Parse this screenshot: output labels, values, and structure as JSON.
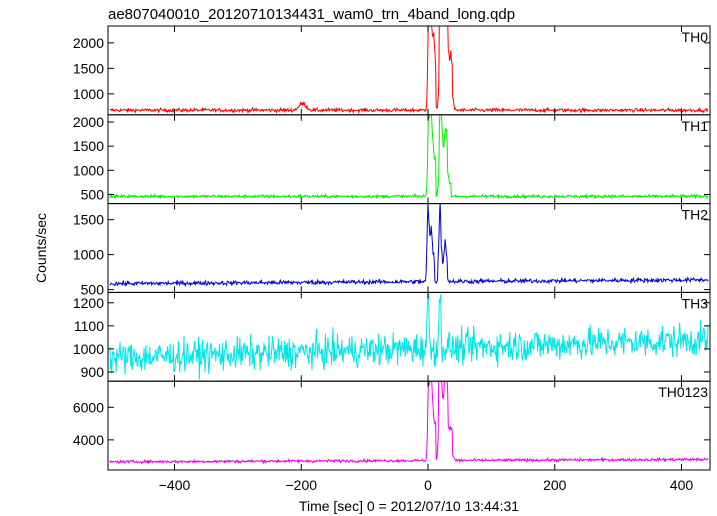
{
  "chart_data": {
    "type": "line",
    "title": "ae807040010_20120710134431_wam0_trn_4band_long.qdp",
    "xlabel": "Time [sec] 0 = 2012/07/10 13:44:31",
    "ylabel": "Counts/sec",
    "xlim": [
      -505,
      445
    ],
    "x_ticks": [
      -400,
      -200,
      0,
      200,
      400
    ],
    "x_tick_labels": [
      "−400",
      "−200",
      "0",
      "200",
      "400"
    ],
    "grid": false,
    "panels": [
      {
        "name": "TH0",
        "color": "#ff0000",
        "ylim": [
          590,
          2330
        ],
        "yticks": [
          1000,
          1500,
          2000
        ],
        "ytick_labels": [
          "1000",
          "1500",
          "2000"
        ],
        "baseline": 680,
        "noise": 25,
        "features": [
          {
            "t": -198,
            "value": 810,
            "width": 8
          },
          {
            "t": 1,
            "value": 2300,
            "width": 2
          },
          {
            "t": 4,
            "value": 1750,
            "width": 3
          },
          {
            "t": 9,
            "value": 1300,
            "width": 2
          },
          {
            "t": 20,
            "value": 1950,
            "width": 3
          },
          {
            "t": 28,
            "value": 1800,
            "width": 4
          },
          {
            "t": 36,
            "value": 1100,
            "width": 4
          }
        ],
        "plateaus": [
          [
            2,
            12,
            1500
          ],
          [
            18,
            32,
            1720
          ],
          [
            32,
            38,
            1300
          ]
        ]
      },
      {
        "name": "TH1",
        "color": "#00ee00",
        "ylim": [
          310,
          2150
        ],
        "yticks": [
          500,
          1000,
          1500,
          2000
        ],
        "ytick_labels": [
          "500",
          "1000",
          "1500",
          "2000"
        ],
        "baseline": 460,
        "noise": 22,
        "features": [
          {
            "t": 1,
            "value": 2100,
            "width": 2
          },
          {
            "t": 5,
            "value": 1380,
            "width": 3
          },
          {
            "t": 20,
            "value": 1620,
            "width": 3
          },
          {
            "t": 28,
            "value": 1150,
            "width": 3
          }
        ],
        "plateaus": [
          [
            3,
            12,
            1250
          ],
          [
            18,
            31,
            1200
          ],
          [
            31,
            36,
            700
          ]
        ]
      },
      {
        "name": "TH2",
        "color": "#0000cc",
        "ylim": [
          460,
          1730
        ],
        "yticks": [
          500,
          1000,
          1500
        ],
        "ytick_labels": [
          "500",
          "1000",
          "1500"
        ],
        "baseline": 585,
        "noise": 22,
        "features": [
          {
            "t": 0,
            "value": 1700,
            "width": 2
          },
          {
            "t": 5,
            "value": 1050,
            "width": 3
          },
          {
            "t": 19,
            "value": 1470,
            "width": 2
          },
          {
            "t": 27,
            "value": 920,
            "width": 3
          }
        ],
        "plateaus": [
          [
            2,
            10,
            900
          ],
          [
            16,
            30,
            850
          ]
        ],
        "trend_end": 640
      },
      {
        "name": "TH3",
        "color": "#00e5e5",
        "ylim": [
          860,
          1245
        ],
        "yticks": [
          900,
          1000,
          1100,
          1200
        ],
        "ytick_labels": [
          "900",
          "1000",
          "1100",
          "1200"
        ],
        "baseline": 960,
        "noise": 50,
        "features": [
          {
            "t": 0,
            "value": 1230,
            "width": 2
          },
          {
            "t": 19,
            "value": 1230,
            "width": 2
          }
        ],
        "plateaus": [],
        "trend_end": 1040
      },
      {
        "name": "TH0123",
        "color": "#ee00ee",
        "ylim": [
          2150,
          7600
        ],
        "yticks": [
          4000,
          6000
        ],
        "ytick_labels": [
          "4000",
          "6000"
        ],
        "baseline": 2650,
        "noise": 60,
        "features": [
          {
            "t": 1,
            "value": 7400,
            "width": 2
          },
          {
            "t": 5,
            "value": 5400,
            "width": 3
          },
          {
            "t": 19,
            "value": 6400,
            "width": 3
          },
          {
            "t": 28,
            "value": 5500,
            "width": 3
          },
          {
            "t": 36,
            "value": 3400,
            "width": 4
          }
        ],
        "plateaus": [
          [
            3,
            12,
            5000
          ],
          [
            17,
            32,
            5900
          ],
          [
            32,
            38,
            4000
          ]
        ],
        "trend_end": 2800
      }
    ]
  }
}
